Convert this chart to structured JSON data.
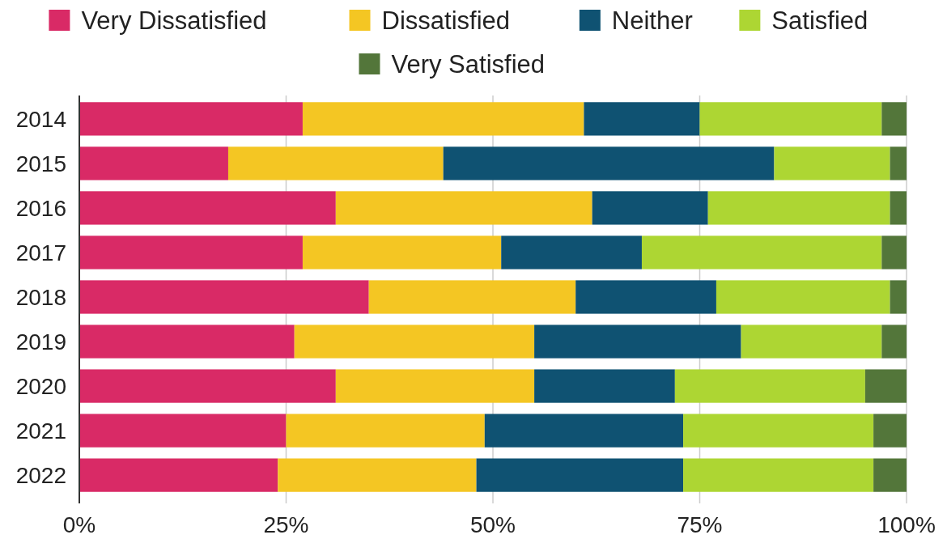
{
  "chart_data": {
    "type": "bar",
    "orientation": "horizontal",
    "stacked": true,
    "categories": [
      "2014",
      "2015",
      "2016",
      "2017",
      "2018",
      "2019",
      "2020",
      "2021",
      "2022"
    ],
    "series": [
      {
        "name": "Very Dissatisfied",
        "color": "#d92a66",
        "values": [
          27,
          18,
          31,
          27,
          35,
          26,
          31,
          25,
          24
        ]
      },
      {
        "name": "Dissatisfied",
        "color": "#f4c623",
        "values": [
          34,
          26,
          31,
          24,
          25,
          29,
          24,
          24,
          24
        ]
      },
      {
        "name": "Neither",
        "color": "#0f5272",
        "values": [
          14,
          40,
          14,
          17,
          17,
          25,
          17,
          24,
          25
        ]
      },
      {
        "name": "Satisfied",
        "color": "#add633",
        "values": [
          22,
          14,
          22,
          29,
          21,
          17,
          23,
          23,
          23
        ]
      },
      {
        "name": "Very Satisfied",
        "color": "#53763a",
        "values": [
          3,
          2,
          2,
          3,
          2,
          3,
          5,
          4,
          4
        ]
      }
    ],
    "xlim": [
      0,
      100
    ],
    "xticks": [
      {
        "value": 0,
        "label": "0%"
      },
      {
        "value": 25,
        "label": "25%"
      },
      {
        "value": 50,
        "label": "50%"
      },
      {
        "value": 75,
        "label": "75%"
      },
      {
        "value": 100,
        "label": "100%"
      }
    ],
    "grid": "x",
    "legend": "top"
  }
}
